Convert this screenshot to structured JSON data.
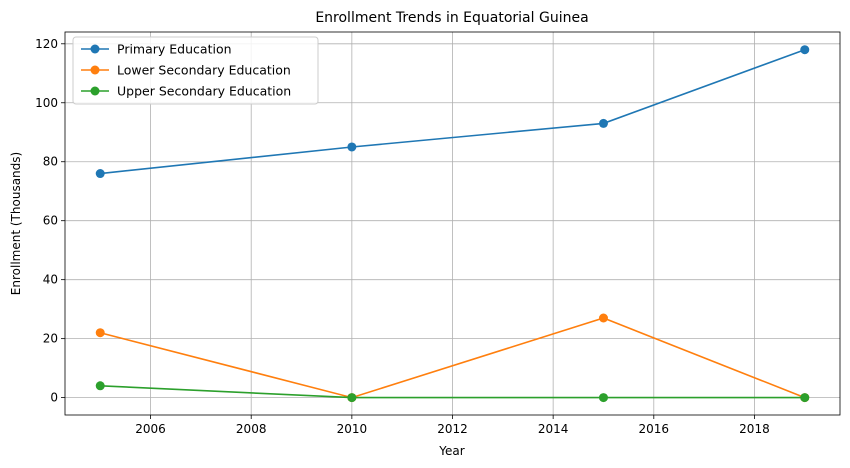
{
  "chart_data": {
    "type": "line",
    "title": "Enrollment Trends in Equatorial Guinea",
    "xlabel": "Year",
    "ylabel": "Enrollment (Thousands)",
    "x": [
      2005,
      2010,
      2015,
      2019
    ],
    "xlim": [
      2004.3,
      2019.7
    ],
    "ylim": [
      -5.9,
      124.0
    ],
    "xticks": [
      2006,
      2008,
      2010,
      2012,
      2014,
      2016,
      2018
    ],
    "yticks": [
      0,
      20,
      40,
      60,
      80,
      100,
      120
    ],
    "grid": true,
    "legend_position": "upper-left",
    "series": [
      {
        "name": "Primary Education",
        "color": "#1f77b4",
        "values": [
          76,
          85,
          93,
          118
        ]
      },
      {
        "name": "Lower Secondary Education",
        "color": "#ff7f0e",
        "values": [
          22,
          0,
          27,
          0
        ]
      },
      {
        "name": "Upper Secondary Education",
        "color": "#2ca02c",
        "values": [
          4,
          0,
          0,
          0
        ]
      }
    ]
  }
}
